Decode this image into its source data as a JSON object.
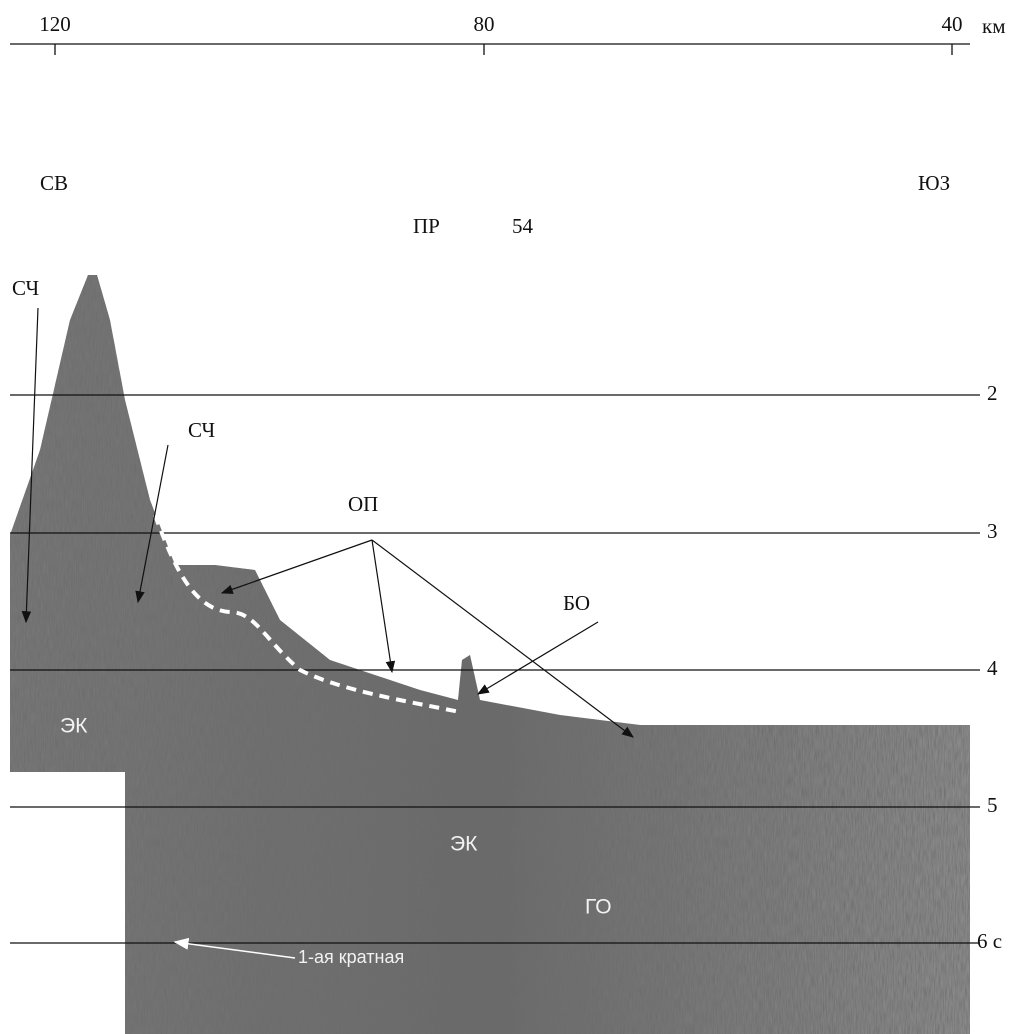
{
  "top_axis": {
    "ticks": [
      "120",
      "80",
      "40"
    ],
    "unit": "км"
  },
  "side_axis": {
    "ticks": [
      "2",
      "3",
      "4",
      "5",
      "6 с"
    ]
  },
  "directions": {
    "left": "СВ",
    "right": "ЮЗ"
  },
  "profile": {
    "prefix": "ПР",
    "number": "54"
  },
  "labels": {
    "sch_1": "СЧ",
    "sch_2": "СЧ",
    "op": "ОП",
    "bo": "БО",
    "ek_1": "ЭК",
    "ek_2": "ЭК",
    "go": "ГО",
    "multiple": "1-ая кратная"
  }
}
